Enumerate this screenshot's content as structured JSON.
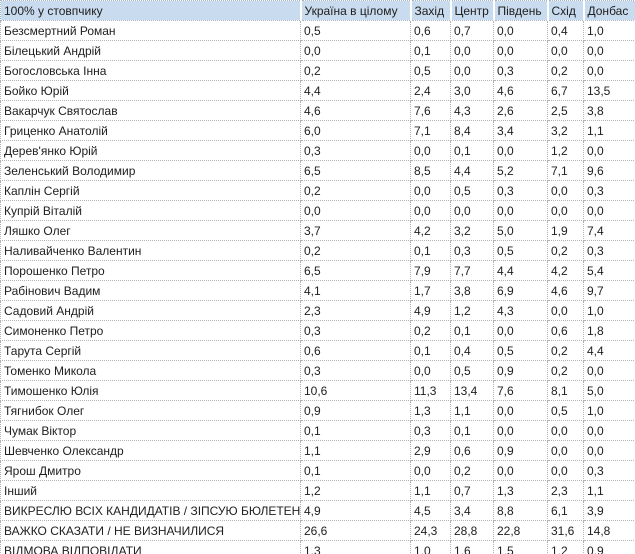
{
  "table": {
    "corner_label": "100% у стовпчику",
    "columns": [
      "Україна в цілому",
      "Захід",
      "Центр",
      "Південь",
      "Схід",
      "Донбас"
    ],
    "rows": [
      {
        "label": "Безсмертний Роман",
        "values": [
          "0,5",
          "0,6",
          "0,7",
          "0,0",
          "0,4",
          "1,0"
        ]
      },
      {
        "label": "Білецький Андрій",
        "values": [
          "0,0",
          "0,1",
          "0,0",
          "0,0",
          "0,0",
          "0,0"
        ]
      },
      {
        "label": "Богословська Інна",
        "values": [
          "0,2",
          "0,5",
          "0,0",
          "0,3",
          "0,2",
          "0,0"
        ]
      },
      {
        "label": "Бойко Юрій",
        "values": [
          "4,4",
          "2,4",
          "3,0",
          "4,6",
          "6,7",
          "13,5"
        ]
      },
      {
        "label": "Вакарчук Святослав",
        "values": [
          "4,6",
          "7,6",
          "4,3",
          "2,6",
          "2,5",
          "3,8"
        ]
      },
      {
        "label": "Гриценко Анатолій",
        "values": [
          "6,0",
          "7,1",
          "8,4",
          "3,4",
          "3,2",
          "1,1"
        ]
      },
      {
        "label": "Дерев'янко Юрій",
        "values": [
          "0,3",
          "0,0",
          "0,1",
          "0,0",
          "1,2",
          "0,0"
        ]
      },
      {
        "label": "Зеленський Володимир",
        "values": [
          "6,5",
          "8,5",
          "4,4",
          "5,2",
          "7,1",
          "9,6"
        ]
      },
      {
        "label": "Каплін Сергій",
        "values": [
          "0,2",
          "0,0",
          "0,5",
          "0,3",
          "0,0",
          "0,3"
        ]
      },
      {
        "label": "Купрій Віталій",
        "values": [
          "0,0",
          "0,0",
          "0,0",
          "0,0",
          "0,0",
          "0,0"
        ]
      },
      {
        "label": "Ляшко Олег",
        "values": [
          "3,7",
          "4,2",
          "3,2",
          "5,0",
          "1,9",
          "7,4"
        ]
      },
      {
        "label": "Наливайченко Валентин",
        "values": [
          "0,2",
          "0,1",
          "0,3",
          "0,5",
          "0,2",
          "0,3"
        ]
      },
      {
        "label": "Порошенко Петро",
        "values": [
          "6,5",
          "7,9",
          "7,7",
          "4,4",
          "4,2",
          "5,4"
        ]
      },
      {
        "label": "Рабінович Вадим",
        "values": [
          "4,1",
          "1,7",
          "3,8",
          "6,9",
          "4,6",
          "9,7"
        ]
      },
      {
        "label": "Садовий Андрій",
        "values": [
          "2,3",
          "4,9",
          "1,2",
          "4,3",
          "0,0",
          "1,0"
        ]
      },
      {
        "label": "Симоненко Петро",
        "values": [
          "0,3",
          "0,2",
          "0,1",
          "0,0",
          "0,6",
          "1,8"
        ]
      },
      {
        "label": "Тарута Сергій",
        "values": [
          "0,6",
          "0,1",
          "0,4",
          "0,5",
          "0,2",
          "4,4"
        ]
      },
      {
        "label": "Томенко Микола",
        "values": [
          "0,3",
          "0,0",
          "0,5",
          "0,9",
          "0,2",
          "0,0"
        ]
      },
      {
        "label": "Тимошенко Юлія",
        "values": [
          "10,6",
          "11,3",
          "13,4",
          "7,6",
          "8,1",
          "5,0"
        ]
      },
      {
        "label": "Тягнибок Олег",
        "values": [
          "0,9",
          "1,3",
          "1,1",
          "0,0",
          "0,5",
          "1,0"
        ]
      },
      {
        "label": "Чумак Віктор",
        "values": [
          "0,1",
          "0,3",
          "0,1",
          "0,0",
          "0,0",
          "0,0"
        ]
      },
      {
        "label": "Шевченко Олександр",
        "values": [
          "1,1",
          "2,9",
          "0,6",
          "0,9",
          "0,0",
          "0,0"
        ]
      },
      {
        "label": "Ярош Дмитро",
        "values": [
          "0,1",
          "0,0",
          "0,2",
          "0,0",
          "0,0",
          "0,3"
        ]
      },
      {
        "label": "Інший",
        "values": [
          "1,2",
          "1,1",
          "0,7",
          "1,3",
          "2,3",
          "1,1"
        ]
      },
      {
        "label": "ВИКРЕСЛЮ ВСІХ КАНДИДАТІВ / ЗІПСУЮ БЮЛЕТЕНЬ",
        "values": [
          "4,9",
          "4,5",
          "3,4",
          "8,8",
          "6,1",
          "3,9"
        ]
      },
      {
        "label": "ВАЖКО СКАЗАТИ / НЕ ВИЗНАЧИЛИСЯ",
        "values": [
          "26,6",
          "24,3",
          "28,8",
          "22,8",
          "31,6",
          "14,8"
        ]
      },
      {
        "label": "ВІДМОВА ВІДПОВІДАТИ",
        "values": [
          "1,3",
          "1,0",
          "1,6",
          "1,5",
          "1,2",
          "0,9"
        ]
      },
      {
        "label": "НЕ БУДУ БРАТИ УЧАСТІ У ВИБОРАХ",
        "values": [
          "12,4",
          "7,3",
          "11,4",
          "18,2",
          "17,1",
          "13,6"
        ]
      }
    ]
  },
  "chart_data": {
    "type": "table",
    "title": "100% у стовпчику",
    "categories": [
      "Україна в цілому",
      "Захід",
      "Центр",
      "Південь",
      "Схід",
      "Донбас"
    ],
    "series": [
      {
        "name": "Безсмертний Роман",
        "values": [
          0.5,
          0.6,
          0.7,
          0.0,
          0.4,
          1.0
        ]
      },
      {
        "name": "Білецький Андрій",
        "values": [
          0.0,
          0.1,
          0.0,
          0.0,
          0.0,
          0.0
        ]
      },
      {
        "name": "Богословська Інна",
        "values": [
          0.2,
          0.5,
          0.0,
          0.3,
          0.2,
          0.0
        ]
      },
      {
        "name": "Бойко Юрій",
        "values": [
          4.4,
          2.4,
          3.0,
          4.6,
          6.7,
          13.5
        ]
      },
      {
        "name": "Вакарчук Святослав",
        "values": [
          4.6,
          7.6,
          4.3,
          2.6,
          2.5,
          3.8
        ]
      },
      {
        "name": "Гриценко Анатолій",
        "values": [
          6.0,
          7.1,
          8.4,
          3.4,
          3.2,
          1.1
        ]
      },
      {
        "name": "Дерев'янко Юрій",
        "values": [
          0.3,
          0.0,
          0.1,
          0.0,
          1.2,
          0.0
        ]
      },
      {
        "name": "Зеленський Володимир",
        "values": [
          6.5,
          8.5,
          4.4,
          5.2,
          7.1,
          9.6
        ]
      },
      {
        "name": "Каплін Сергій",
        "values": [
          0.2,
          0.0,
          0.5,
          0.3,
          0.0,
          0.3
        ]
      },
      {
        "name": "Купрій Віталій",
        "values": [
          0.0,
          0.0,
          0.0,
          0.0,
          0.0,
          0.0
        ]
      },
      {
        "name": "Ляшко Олег",
        "values": [
          3.7,
          4.2,
          3.2,
          5.0,
          1.9,
          7.4
        ]
      },
      {
        "name": "Наливайченко Валентин",
        "values": [
          0.2,
          0.1,
          0.3,
          0.5,
          0.2,
          0.3
        ]
      },
      {
        "name": "Порошенко Петро",
        "values": [
          6.5,
          7.9,
          7.7,
          4.4,
          4.2,
          5.4
        ]
      },
      {
        "name": "Рабінович Вадим",
        "values": [
          4.1,
          1.7,
          3.8,
          6.9,
          4.6,
          9.7
        ]
      },
      {
        "name": "Садовий Андрій",
        "values": [
          2.3,
          4.9,
          1.2,
          4.3,
          0.0,
          1.0
        ]
      },
      {
        "name": "Симоненко Петро",
        "values": [
          0.3,
          0.2,
          0.1,
          0.0,
          0.6,
          1.8
        ]
      },
      {
        "name": "Тарута Сергій",
        "values": [
          0.6,
          0.1,
          0.4,
          0.5,
          0.2,
          4.4
        ]
      },
      {
        "name": "Томенко Микола",
        "values": [
          0.3,
          0.0,
          0.5,
          0.9,
          0.2,
          0.0
        ]
      },
      {
        "name": "Тимошенко Юлія",
        "values": [
          10.6,
          11.3,
          13.4,
          7.6,
          8.1,
          5.0
        ]
      },
      {
        "name": "Тягнибок Олег",
        "values": [
          0.9,
          1.3,
          1.1,
          0.0,
          0.5,
          1.0
        ]
      },
      {
        "name": "Чумак Віктор",
        "values": [
          0.1,
          0.3,
          0.1,
          0.0,
          0.0,
          0.0
        ]
      },
      {
        "name": "Шевченко Олександр",
        "values": [
          1.1,
          2.9,
          0.6,
          0.9,
          0.0,
          0.0
        ]
      },
      {
        "name": "Ярош Дмитро",
        "values": [
          0.1,
          0.0,
          0.2,
          0.0,
          0.0,
          0.3
        ]
      },
      {
        "name": "Інший",
        "values": [
          1.2,
          1.1,
          0.7,
          1.3,
          2.3,
          1.1
        ]
      },
      {
        "name": "ВИКРЕСЛЮ ВСІХ КАНДИДАТІВ / ЗІПСУЮ БЮЛЕТЕНЬ",
        "values": [
          4.9,
          4.5,
          3.4,
          8.8,
          6.1,
          3.9
        ]
      },
      {
        "name": "ВАЖКО СКАЗАТИ / НЕ ВИЗНАЧИЛИСЯ",
        "values": [
          26.6,
          24.3,
          28.8,
          22.8,
          31.6,
          14.8
        ]
      },
      {
        "name": "ВІДМОВА ВІДПОВІДАТИ",
        "values": [
          1.3,
          1.0,
          1.6,
          1.5,
          1.2,
          0.9
        ]
      },
      {
        "name": "НЕ БУДУ БРАТИ УЧАСТІ У ВИБОРАХ",
        "values": [
          12.4,
          7.3,
          11.4,
          18.2,
          17.1,
          13.6
        ]
      }
    ]
  },
  "colors": {
    "header_bg": "#c9dbee",
    "border": "#b3b3b3",
    "text": "#202020"
  }
}
